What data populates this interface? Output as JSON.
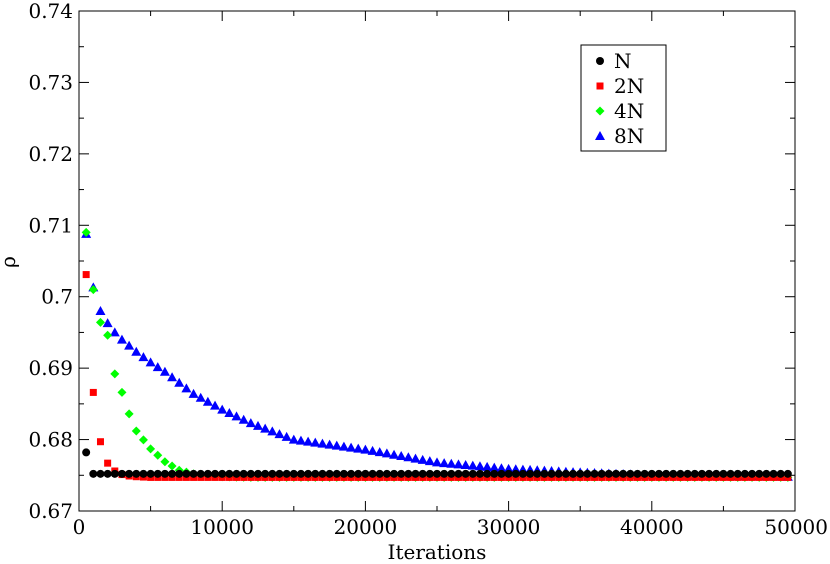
{
  "chart_data": {
    "type": "scatter",
    "xlabel": "Iterations",
    "ylabel": "ρ",
    "xlim": [
      0,
      50000
    ],
    "ylim": [
      0.67,
      0.74
    ],
    "xticks": [
      0,
      10000,
      20000,
      30000,
      40000,
      50000
    ],
    "xtick_labels": [
      "0",
      "10000",
      "20000",
      "30000",
      "40000",
      "50000"
    ],
    "yticks": [
      0.67,
      0.68,
      0.69,
      0.7,
      0.71,
      0.72,
      0.73,
      0.74
    ],
    "ytick_labels": [
      "0.67",
      "0.68",
      "0.69",
      "0.7",
      "0.71",
      "0.72",
      "0.73",
      "0.74"
    ],
    "grid": false,
    "legend_position": "top-right",
    "series": [
      {
        "name": "N",
        "marker": "circle",
        "color": "#000000",
        "x": [
          500,
          1000,
          1500,
          2000,
          2500,
          3000,
          3500,
          4000,
          5000,
          6000,
          8000,
          10000,
          15000,
          20000,
          25000,
          30000,
          35000,
          40000,
          45000,
          49500
        ],
        "y": [
          0.6782,
          0.6752,
          0.6752,
          0.6752,
          0.6752,
          0.6752,
          0.6752,
          0.6752,
          0.6752,
          0.6752,
          0.6752,
          0.6752,
          0.6752,
          0.6752,
          0.6752,
          0.6752,
          0.6752,
          0.6752,
          0.6752,
          0.6752
        ]
      },
      {
        "name": "2N",
        "marker": "square",
        "color": "#ff0000",
        "x": [
          500,
          1000,
          1500,
          2000,
          2500,
          3000,
          3500,
          4000,
          5000,
          6000,
          8000,
          10000,
          15000,
          20000,
          25000,
          30000,
          35000,
          40000,
          45000,
          49500
        ],
        "y": [
          0.7031,
          0.6866,
          0.6797,
          0.6767,
          0.6756,
          0.6751,
          0.6749,
          0.6748,
          0.6747,
          0.6747,
          0.6747,
          0.6747,
          0.6747,
          0.6747,
          0.6747,
          0.6747,
          0.6747,
          0.6747,
          0.6747,
          0.6747
        ]
      },
      {
        "name": "4N",
        "marker": "diamond",
        "color": "#00ff00",
        "x": [
          500,
          1000,
          1500,
          2000,
          2500,
          3000,
          3500,
          4000,
          5000,
          6000,
          7000,
          8000,
          9000,
          10000,
          12000,
          15000,
          20000,
          25000,
          30000,
          35000,
          40000,
          45000,
          49500
        ],
        "y": [
          0.709,
          0.701,
          0.6964,
          0.6946,
          0.6892,
          0.6866,
          0.6836,
          0.6812,
          0.6787,
          0.6769,
          0.6757,
          0.6752,
          0.6749,
          0.6748,
          0.6747,
          0.6747,
          0.6747,
          0.6747,
          0.6747,
          0.6747,
          0.6747,
          0.6747,
          0.6747
        ]
      },
      {
        "name": "8N",
        "marker": "triangle",
        "color": "#0000ff",
        "x": [
          500,
          1000,
          1500,
          2000,
          2500,
          3000,
          4000,
          5000,
          6000,
          8000,
          10000,
          12000,
          15000,
          20000,
          25000,
          30000,
          35000,
          40000,
          45000,
          49500
        ],
        "y": [
          0.7088,
          0.7013,
          0.698,
          0.6963,
          0.695,
          0.694,
          0.6923,
          0.6908,
          0.6895,
          0.6864,
          0.6842,
          0.6823,
          0.68,
          0.6786,
          0.6768,
          0.6759,
          0.6754,
          0.675,
          0.6749,
          0.6748
        ]
      }
    ]
  }
}
